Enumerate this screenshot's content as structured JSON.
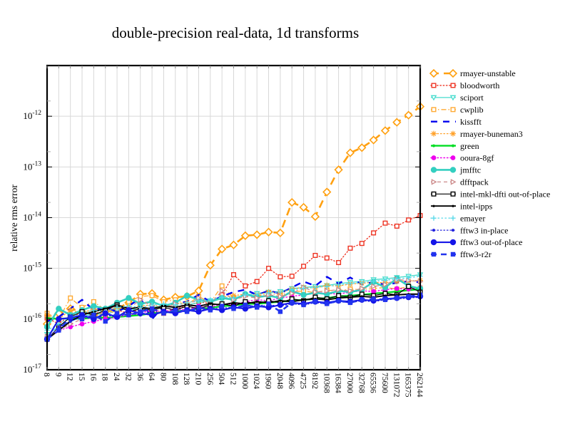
{
  "figure": {
    "title": "double-precision real-data, 1d transforms",
    "background": "#ffffff"
  },
  "axes": {
    "ylabel": "relative rms error",
    "y_ticks": [
      {
        "base": "10",
        "exponent": "-12",
        "value": 1e-12
      },
      {
        "base": "10",
        "exponent": "-13",
        "value": 1e-13
      },
      {
        "base": "10",
        "exponent": "-14",
        "value": 1e-14
      },
      {
        "base": "10",
        "exponent": "-15",
        "value": 1e-15
      },
      {
        "base": "10",
        "exponent": "-16",
        "value": 1e-16
      },
      {
        "base": "10",
        "exponent": "-17",
        "value": 1e-17
      }
    ],
    "x_tick_labels": [
      "8",
      "9",
      "12",
      "15",
      "16",
      "18",
      "24",
      "32",
      "36",
      "64",
      "80",
      "108",
      "128",
      "210",
      "256",
      "504",
      "512",
      "1000",
      "1024",
      "1960",
      "2048",
      "4096",
      "4725",
      "8192",
      "10368",
      "16384",
      "27000",
      "32768",
      "65536",
      "75600",
      "131072",
      "165375",
      "262144"
    ]
  },
  "chart_data": {
    "type": "line",
    "title": "double-precision real-data, 1d transforms",
    "xlabel": "",
    "ylabel": "relative rms error",
    "x_scale": "categorical-transform-sizes",
    "y_scale": "log",
    "ylim": [
      1e-17,
      1e-11
    ],
    "grid": true,
    "legend_position": "right",
    "grid_color": "#d8d8d8",
    "categories": [
      8,
      9,
      12,
      15,
      16,
      18,
      24,
      32,
      36,
      64,
      80,
      108,
      128,
      210,
      256,
      504,
      512,
      1000,
      1024,
      1960,
      2048,
      4096,
      4725,
      8192,
      10368,
      16384,
      27000,
      32768,
      65536,
      75600,
      131072,
      165375,
      262144
    ],
    "series": [
      {
        "name": "rmayer-unstable",
        "color": "#FFA010",
        "dash": "11,7",
        "width": 2.6,
        "marker": "open-diamond",
        "marker_size": 5,
        "values": [
          8e-17,
          1.3e-16,
          1.6e-16,
          1.4e-16,
          1.2e-16,
          1.4e-16,
          1.6e-16,
          2.1e-16,
          3.1e-16,
          3.2e-16,
          2.4e-16,
          2.7e-16,
          2.8e-16,
          3.6e-16,
          1.15e-15,
          2.4e-15,
          2.9e-15,
          4.4e-15,
          4.6e-15,
          5.2e-15,
          5e-15,
          2e-14,
          1.6e-14,
          1.05e-14,
          3.2e-14,
          8.8e-14,
          1.9e-13,
          2.4e-13,
          3.4e-13,
          5.2e-13,
          7.6e-13,
          1.05e-12,
          1.55e-12
        ]
      },
      {
        "name": "bloodworth",
        "color": "#EE3322",
        "dash": "1.5,2.8",
        "width": 1.3,
        "marker": "open-square",
        "marker_size": 2.8,
        "values": [
          1.05e-16,
          8e-17,
          1.2e-16,
          1.25e-16,
          1.4e-16,
          1.2e-16,
          1.5e-16,
          1.3e-16,
          1.6e-16,
          1.5e-16,
          1.3e-16,
          1.6e-16,
          1.8e-16,
          2.2e-16,
          2e-16,
          3e-16,
          7.5e-16,
          4.5e-16,
          5.5e-16,
          1e-15,
          6.8e-16,
          7e-16,
          1.1e-15,
          1.8e-15,
          1.6e-15,
          1.3e-15,
          2.5e-15,
          3.1e-15,
          5e-15,
          7.8e-15,
          6.8e-15,
          9e-15,
          1.1e-14
        ]
      },
      {
        "name": "sciport",
        "color": "#45DCCD",
        "dash": "",
        "width": 1.3,
        "marker": "open-triangle-down",
        "marker_size": 3.2,
        "values": [
          5e-17,
          7e-17,
          9e-17,
          1.1e-16,
          1.3e-16,
          1.2e-16,
          1.5e-16,
          1.6e-16,
          1.5e-16,
          1.7e-16,
          1.8e-16,
          1.7e-16,
          1.9e-16,
          2.1e-16,
          2.3e-16,
          2.6e-16,
          2.5e-16,
          3e-16,
          3.2e-16,
          3.4e-16,
          3.5e-16,
          4e-16,
          4.2e-16,
          4.4e-16,
          4.6e-16,
          5e-16,
          5.3e-16,
          5.5e-16,
          6e-16,
          6.2e-16,
          6.6e-16,
          7e-16,
          7.5e-16
        ]
      },
      {
        "name": "cwplib",
        "color": "#FFAA33",
        "dash": "7,3,1.5,3",
        "width": 1.3,
        "marker": "open-square",
        "marker_size": 2.8,
        "values": [
          1.3e-16,
          1e-16,
          2.6e-16,
          1.7e-16,
          2.2e-16,
          1.5e-16,
          1.3e-16,
          2.2e-16,
          2.8e-16,
          2.9e-16,
          2.2e-16,
          2.4e-16,
          1.9e-16,
          2.8e-16,
          2.1e-16,
          4.5e-16,
          2.6e-16,
          3e-16,
          2.8e-16,
          3.2e-16,
          3e-16,
          3.4e-16,
          3.6e-16,
          3.3e-16,
          3.7e-16,
          3.6e-16,
          3.9e-16,
          3.8e-16,
          4e-16,
          4.2e-16,
          3.9e-16,
          4.4e-16,
          4.1e-16
        ]
      },
      {
        "name": "kissfft",
        "color": "#0000EE",
        "dash": "9,8",
        "width": 2.4,
        "marker": "none",
        "marker_size": 0,
        "values": [
          9e-17,
          1.1e-16,
          1.6e-16,
          2.4e-16,
          1.5e-16,
          1.7e-16,
          1.4e-16,
          1.8e-16,
          2.6e-16,
          1e-16,
          1.8e-16,
          2e-16,
          2.2e-16,
          3e-16,
          2.2e-16,
          2.8e-16,
          3.4e-16,
          3.8e-16,
          3e-16,
          3.6e-16,
          3.2e-16,
          4.2e-16,
          5.5e-16,
          4.5e-16,
          6.8e-16,
          5e-16,
          6.6e-16,
          4.8e-16,
          5.4e-16,
          4.7e-16,
          5.2e-16,
          5.6e-16,
          5.3e-16
        ]
      },
      {
        "name": "rmayer-buneman3",
        "color": "#FFA028",
        "dash": "1.5,3",
        "width": 1.3,
        "marker": "star",
        "marker_size": 4,
        "values": [
          1.2e-16,
          1e-16,
          1.5e-16,
          1.3e-16,
          1.6e-16,
          1.4e-16,
          1.7e-16,
          1.6e-16,
          1.8e-16,
          1.9e-16,
          1.7e-16,
          2e-16,
          2.1e-16,
          2.3e-16,
          2.2e-16,
          2.7e-16,
          2.9e-16,
          3.1e-16,
          3e-16,
          3.4e-16,
          3.3e-16,
          3.9e-16,
          4.2e-16,
          4.1e-16,
          4.6e-16,
          4.5e-16,
          4.9e-16,
          5.1e-16,
          5.3e-16,
          5.2e-16,
          5.5e-16,
          5.6e-16,
          5.8e-16
        ]
      },
      {
        "name": "green",
        "color": "#00DD22",
        "dash": "",
        "width": 2.4,
        "marker": "dot",
        "marker_size": 2,
        "values": [
          1.05e-16,
          1e-16,
          1.05e-16,
          1e-16,
          1.1e-16,
          1.05e-16,
          1.1e-16,
          1.15e-16,
          1.2e-16,
          1.3e-16,
          1.35e-16,
          1.4e-16,
          1.5e-16,
          1.6e-16,
          1.65e-16,
          1.8e-16,
          1.85e-16,
          2e-16,
          2e-16,
          2.1e-16,
          2.2e-16,
          2.3e-16,
          2.4e-16,
          2.5e-16,
          2.6e-16,
          2.8e-16,
          2.9e-16,
          3e-16,
          3.2e-16,
          3.3e-16,
          3.5e-16,
          3.7e-16,
          3.9e-16
        ]
      },
      {
        "name": "ooura-8gf",
        "color": "#EE00EE",
        "dash": "1.5,3",
        "width": 1.4,
        "marker": "filled-circle",
        "marker_size": 3.4,
        "values": [
          4e-17,
          6e-17,
          7e-17,
          8e-17,
          9e-17,
          1e-16,
          1.1e-16,
          1.2e-16,
          1.3e-16,
          1.5e-16,
          1.4e-16,
          1.6e-16,
          1.5e-16,
          1.8e-16,
          1.7e-16,
          2e-16,
          1.9e-16,
          2.2e-16,
          2.4e-16,
          2.3e-16,
          2.6e-16,
          2.8e-16,
          3e-16,
          3.4e-16,
          3.2e-16,
          3.1e-16,
          3.4e-16,
          3.6e-16,
          3.5e-16,
          3.8e-16,
          4e-16,
          3.9e-16,
          4.2e-16
        ]
      },
      {
        "name": "jmfftc",
        "color": "#33CFC0",
        "dash": "",
        "width": 2.6,
        "marker": "filled-circle",
        "marker_size": 4.2,
        "values": [
          7e-17,
          1.6e-16,
          1.2e-16,
          1.5e-16,
          1.8e-16,
          1.6e-16,
          2.1e-16,
          2.6e-16,
          2e-16,
          2.2e-16,
          1.8e-16,
          2.1e-16,
          2.9e-16,
          2.4e-16,
          2.2e-16,
          2.6e-16,
          2.4e-16,
          3.1e-16,
          2.7e-16,
          2.9e-16,
          2.6e-16,
          3.5e-16,
          3e-16,
          3.3e-16,
          3.1e-16,
          3.6e-16,
          3.4e-16,
          3.8e-16,
          5.4e-16,
          4.2e-16,
          6.3e-16,
          4.5e-16,
          4e-16
        ]
      },
      {
        "name": "dfftpack",
        "color": "#CC8A8A",
        "dash": "5,4",
        "width": 1.3,
        "marker": "open-triangle-right",
        "marker_size": 3.2,
        "values": [
          4.5e-17,
          6e-17,
          8e-17,
          1e-16,
          1.2e-16,
          1.4e-16,
          1.9e-16,
          1.6e-16,
          2.4e-16,
          1.8e-16,
          1.6e-16,
          2e-16,
          1.8e-16,
          2.6e-16,
          2e-16,
          3.6e-16,
          2.4e-16,
          2.8e-16,
          2.6e-16,
          3e-16,
          2.8e-16,
          3.2e-16,
          4.2e-16,
          3.4e-16,
          3.6e-16,
          3.8e-16,
          3.6e-16,
          4e-16,
          4.4e-16,
          4.8e-16,
          6e-16,
          5.8e-16,
          5.5e-16
        ]
      },
      {
        "name": "intel-mkl-dfti out-of-place",
        "color": "#000000",
        "dash": "",
        "width": 1.2,
        "marker": "open-square",
        "marker_size": 2.8,
        "values": [
          4e-17,
          7e-17,
          1.1e-16,
          1.4e-16,
          1.2e-16,
          1.5e-16,
          1.9e-16,
          1.4e-16,
          1.6e-16,
          1.5e-16,
          1.7e-16,
          1.5e-16,
          1.8e-16,
          1.6e-16,
          1.9e-16,
          2e-16,
          1.8e-16,
          2.2e-16,
          2e-16,
          2.3e-16,
          2.1e-16,
          2.5e-16,
          2.3e-16,
          2.7e-16,
          2.5e-16,
          2.9e-16,
          2.7e-16,
          3.1e-16,
          2.9e-16,
          3.2e-16,
          3e-16,
          4.4e-16,
          3.4e-16
        ]
      },
      {
        "name": "intel-ipps",
        "color": "#000000",
        "dash": "",
        "width": 1.9,
        "marker": "dot",
        "marker_size": 1.6,
        "values": [
          4e-17,
          6e-17,
          9e-17,
          1.2e-16,
          1.4e-16,
          1.6e-16,
          1.9e-16,
          1.6e-16,
          1.7e-16,
          1.6e-16,
          1.8e-16,
          1.7e-16,
          1.9e-16,
          1.8e-16,
          2e-16,
          1.9e-16,
          2.1e-16,
          2e-16,
          2.2e-16,
          2.1e-16,
          2.3e-16,
          2.2e-16,
          2.4e-16,
          2.5e-16,
          2.4e-16,
          2.6e-16,
          2.7e-16,
          2.8e-16,
          2.7e-16,
          2.9e-16,
          3e-16,
          3.1e-16,
          3.1e-16
        ]
      },
      {
        "name": "emayer",
        "color": "#55D8E8",
        "dash": "1.5,3.5",
        "width": 1.3,
        "marker": "plus",
        "marker_size": 3.6,
        "values": [
          6e-17,
          8e-17,
          1.1e-16,
          1.3e-16,
          1.5e-16,
          1.4e-16,
          1.7e-16,
          1.8e-16,
          1.7e-16,
          1.9e-16,
          2e-16,
          1.9e-16,
          2.1e-16,
          2.3e-16,
          2.4e-16,
          2.7e-16,
          2.6e-16,
          3e-16,
          3.1e-16,
          3.3e-16,
          3.4e-16,
          3.8e-16,
          4e-16,
          4.2e-16,
          4.4e-16,
          4.7e-16,
          5e-16,
          5.2e-16,
          5.6e-16,
          5.8e-16,
          6.2e-16,
          6.5e-16,
          7e-16
        ]
      },
      {
        "name": "fftw3 in-place",
        "color": "#2222DD",
        "dash": "1.5,3",
        "width": 1.3,
        "marker": "dot",
        "marker_size": 2,
        "values": [
          4e-17,
          7e-17,
          9e-17,
          1.1e-16,
          1e-16,
          1.2e-16,
          1.1e-16,
          1.3e-16,
          1.2e-16,
          1.4e-16,
          1.3e-16,
          1.5e-16,
          1.4e-16,
          1.6e-16,
          1.5e-16,
          1.7e-16,
          1.6e-16,
          1.8e-16,
          1.7e-16,
          1.9e-16,
          1.8e-16,
          2e-16,
          1.9e-16,
          2.1e-16,
          2e-16,
          2.2e-16,
          2.1e-16,
          2.3e-16,
          2.2e-16,
          2.4e-16,
          2.5e-16,
          2.6e-16,
          2.7e-16
        ]
      },
      {
        "name": "fftw3 out-of-place",
        "color": "#1515E8",
        "dash": "",
        "width": 2.1,
        "marker": "filled-circle",
        "marker_size": 4.2,
        "values": [
          4e-17,
          1e-16,
          1.05e-16,
          1.2e-16,
          1e-16,
          1.3e-16,
          1.1e-16,
          1.5e-16,
          1.3e-16,
          1.2e-16,
          1.4e-16,
          1.3e-16,
          1.5e-16,
          1.4e-16,
          1.6e-16,
          1.5e-16,
          1.7e-16,
          1.6e-16,
          1.8e-16,
          1.7e-16,
          1.9e-16,
          2.1e-16,
          2e-16,
          2.2e-16,
          2.1e-16,
          2.3e-16,
          2.2e-16,
          2.4e-16,
          2.3e-16,
          2.5e-16,
          2.6e-16,
          2.7e-16,
          2.8e-16
        ]
      },
      {
        "name": "fftw3-r2r",
        "color": "#2233EE",
        "dash": "8,6",
        "width": 2.5,
        "marker": "filled-square",
        "marker_size": 3.2,
        "values": [
          4e-17,
          6e-17,
          1.1e-16,
          1e-16,
          1.2e-16,
          9e-17,
          1.3e-16,
          1.2e-16,
          1.4e-16,
          1.6e-16,
          1.3e-16,
          1.5e-16,
          1.4e-16,
          1.7e-16,
          1.5e-16,
          1.8e-16,
          1.6e-16,
          1.9e-16,
          1.7e-16,
          2e-16,
          1.4e-16,
          2.1e-16,
          1.9e-16,
          2.2e-16,
          2e-16,
          2.3e-16,
          2.1e-16,
          2.4e-16,
          2.5e-16,
          2.4e-16,
          2.6e-16,
          2.8e-16,
          3e-16
        ]
      }
    ]
  }
}
